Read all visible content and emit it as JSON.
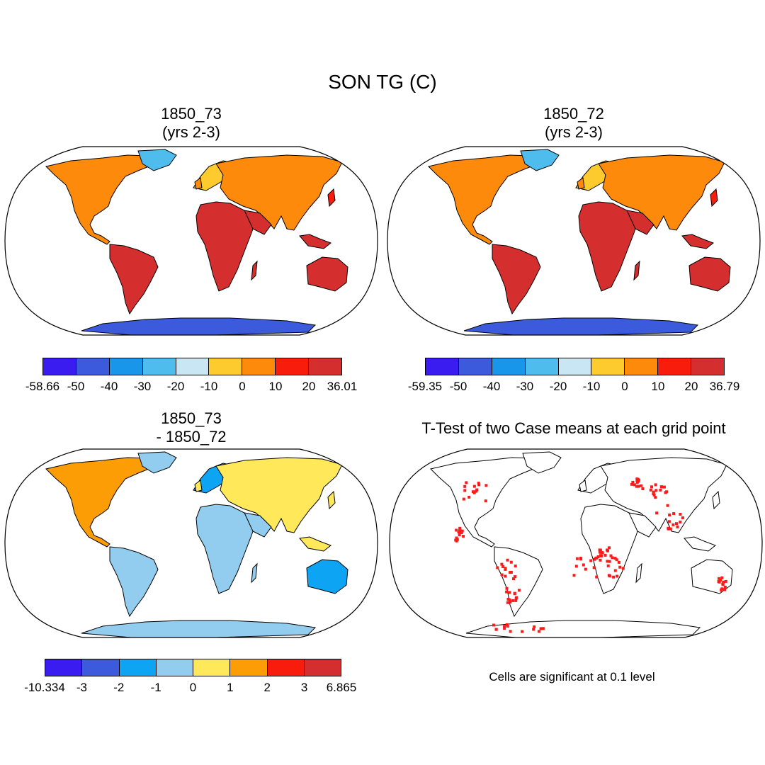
{
  "title": "SON TG (C)",
  "panels": [
    {
      "title_line1": "1850_73",
      "title_line2": "(yrs 2-3)",
      "field": "mean"
    },
    {
      "title_line1": "1850_72",
      "title_line2": "(yrs 2-3)",
      "field": "mean"
    },
    {
      "title_line1": "1850_73",
      "title_line2": "- 1850_72",
      "field": "difference"
    },
    {
      "title_line1": "T-Test of two Case means at each grid point",
      "title_line2": "",
      "field": "significance"
    }
  ],
  "colorbars": [
    {
      "labels": [
        "-58.66",
        "-50",
        "-40",
        "-30",
        "-20",
        "-10",
        "0",
        "10",
        "20",
        "36.01"
      ],
      "colors": [
        "#3a1cf0",
        "#3b5bdc",
        "#1796ea",
        "#4fbcee",
        "#c9e6f5",
        "#fecb2e",
        "#fd8a0b",
        "#f81c0c",
        "#d52e2e"
      ]
    },
    {
      "labels": [
        "-59.35",
        "-50",
        "-40",
        "-30",
        "-20",
        "-10",
        "0",
        "10",
        "20",
        "36.79"
      ],
      "colors": [
        "#3a1cf0",
        "#3b5bdc",
        "#1796ea",
        "#4fbcee",
        "#c9e6f5",
        "#fecb2e",
        "#fd8a0b",
        "#f81c0c",
        "#d52e2e"
      ]
    },
    {
      "labels": [
        "-10.334",
        "-3",
        "-2",
        "-1",
        "0",
        "1",
        "2",
        "3",
        "6.865"
      ],
      "colors": [
        "#3a1cf0",
        "#3b5bdc",
        "#0ea4f4",
        "#92cdef",
        "#ffe95a",
        "#fd9d05",
        "#f81c0c",
        "#d52e2e"
      ]
    }
  ],
  "significance_note": "Cells are significant at 0.1 level",
  "significance_color": "#ff1a1a",
  "map_projection": "robinson"
}
